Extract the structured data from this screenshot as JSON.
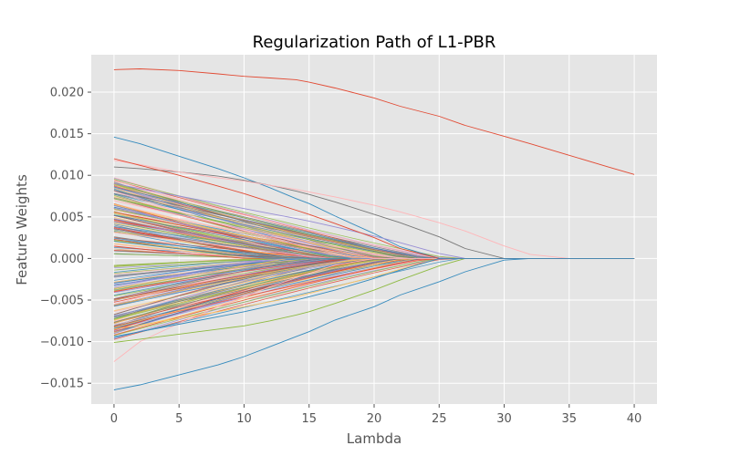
{
  "chart_data": {
    "type": "line",
    "title": "Regularization Path of L1-PBR",
    "xlabel": "Lambda",
    "ylabel": "Feature Weights",
    "xlim": [
      -1.75,
      41.75
    ],
    "ylim": [
      -0.0175,
      0.0245
    ],
    "x_ticks": [
      0,
      5,
      10,
      15,
      20,
      25,
      30,
      35,
      40
    ],
    "x_tick_labels": [
      "0",
      "5",
      "10",
      "15",
      "20",
      "25",
      "30",
      "35",
      "40"
    ],
    "y_ticks": [
      -0.015,
      -0.01,
      -0.005,
      0.0,
      0.005,
      0.01,
      0.015,
      0.02
    ],
    "y_tick_labels": [
      "−0.015",
      "−0.010",
      "−0.005",
      "0.000",
      "0.005",
      "0.010",
      "0.015",
      "0.020"
    ],
    "grid": true,
    "legend": "none",
    "x": [
      0,
      2,
      5,
      8,
      10,
      12,
      14,
      15,
      17,
      20,
      22,
      25,
      27,
      30,
      32,
      35,
      38,
      40
    ],
    "series": [
      {
        "color": "#e24a33",
        "values": [
          0.0227,
          0.0228,
          0.0226,
          0.0222,
          0.0219,
          0.0217,
          0.0215,
          0.0212,
          0.0205,
          0.0193,
          0.0183,
          0.0171,
          0.016,
          0.0147,
          0.0138,
          0.0124,
          0.011,
          0.0101
        ]
      },
      {
        "color": "#348abd",
        "values": [
          -0.0158,
          -0.0152,
          -0.014,
          -0.0128,
          -0.0118,
          -0.0106,
          -0.0094,
          -0.0088,
          -0.0074,
          -0.0058,
          -0.0044,
          -0.0028,
          -0.0016,
          -0.0002,
          0.0,
          0.0,
          0.0,
          0.0
        ]
      },
      {
        "color": "#348abd",
        "values": [
          0.0146,
          0.0138,
          0.0123,
          0.0108,
          0.0097,
          0.0085,
          0.0072,
          0.0066,
          0.0051,
          0.003,
          0.0014,
          0.0,
          0.0,
          0.0,
          0.0,
          0.0,
          0.0,
          0.0
        ]
      },
      {
        "color": "#777777",
        "values": [
          0.011,
          0.0108,
          0.0104,
          0.0099,
          0.0094,
          0.0088,
          0.0081,
          0.0077,
          0.0068,
          0.0053,
          0.0043,
          0.0026,
          0.0012,
          0.0,
          0.0,
          0.0,
          0.0,
          0.0
        ]
      },
      {
        "color": "#ffb5b8",
        "values": [
          0.0118,
          0.0113,
          0.0104,
          0.0097,
          0.0093,
          0.0088,
          0.0083,
          0.008,
          0.0074,
          0.0064,
          0.0056,
          0.0043,
          0.0033,
          0.0015,
          0.0005,
          0.0,
          0.0,
          0.0
        ]
      },
      {
        "color": "#ffb5b8",
        "values": [
          -0.0124,
          -0.01,
          -0.0078,
          -0.0058,
          -0.0046,
          -0.0034,
          -0.0023,
          -0.0018,
          -0.0008,
          0.0,
          0.0,
          0.0,
          0.0,
          0.0,
          0.0,
          0.0,
          0.0,
          0.0
        ]
      },
      {
        "color": "#8eba42",
        "values": [
          -0.0101,
          -0.0097,
          -0.0091,
          -0.0085,
          -0.0081,
          -0.0075,
          -0.0068,
          -0.0064,
          -0.0054,
          -0.0038,
          -0.0026,
          -0.0009,
          0.0,
          0.0,
          0.0,
          0.0,
          0.0,
          0.0
        ]
      },
      {
        "color": "#988ed5",
        "values": [
          0.009,
          0.0084,
          0.0075,
          0.0066,
          0.006,
          0.0054,
          0.0048,
          0.0045,
          0.0038,
          0.0027,
          0.0019,
          0.0006,
          0.0,
          0.0,
          0.0,
          0.0,
          0.0,
          0.0
        ]
      },
      {
        "color": "#fbc15e",
        "values": [
          -0.0085,
          -0.008,
          -0.0072,
          -0.0064,
          -0.0058,
          -0.0052,
          -0.0046,
          -0.0042,
          -0.0034,
          -0.0022,
          -0.0013,
          0.0,
          0.0,
          0.0,
          0.0,
          0.0,
          0.0,
          0.0
        ]
      },
      {
        "color": "#e24a33",
        "values": [
          0.012,
          0.0112,
          0.01,
          0.0087,
          0.0078,
          0.0068,
          0.0058,
          0.0053,
          0.0042,
          0.0025,
          0.0012,
          0.0,
          0.0,
          0.0,
          0.0,
          0.0,
          0.0,
          0.0
        ]
      },
      {
        "color": "#348abd",
        "values": [
          -0.0094,
          -0.0088,
          -0.0079,
          -0.007,
          -0.0064,
          -0.0057,
          -0.005,
          -0.0046,
          -0.0038,
          -0.0024,
          -0.0014,
          0.0,
          0.0,
          0.0,
          0.0,
          0.0,
          0.0,
          0.0
        ]
      }
    ]
  },
  "background_bundle": {
    "colors": [
      "#e24a33",
      "#348abd",
      "#988ed5",
      "#777777",
      "#fbc15e",
      "#8eba42",
      "#ffb5b8"
    ],
    "count": 220
  }
}
